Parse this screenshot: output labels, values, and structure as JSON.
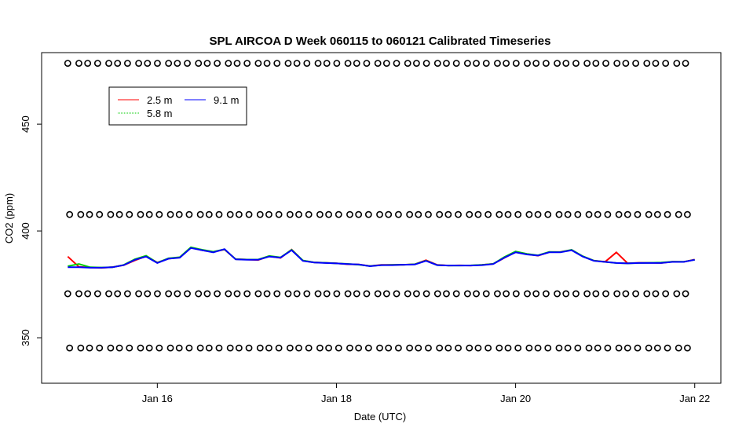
{
  "chart_data": {
    "type": "line",
    "title": "SPL AIRCOA D  Week 060115 to 060121  Calibrated Timeseries",
    "xlabel": "Date (UTC)",
    "ylabel": "CO2 (ppm)",
    "x_start": "2006-01-15T00:00",
    "x_step_hours": 3,
    "xlim": [
      "2006-01-14T17:00",
      "2006-01-22T07:00"
    ],
    "ylim": [
      328.7,
      483.5
    ],
    "x_ticks": [
      {
        "date": "2006-01-16",
        "label": "Jan 16"
      },
      {
        "date": "2006-01-18",
        "label": "Jan 18"
      },
      {
        "date": "2006-01-20",
        "label": "Jan 20"
      },
      {
        "date": "2006-01-22",
        "label": "Jan 22"
      }
    ],
    "y_ticks": [
      350,
      400,
      450
    ],
    "grid": false,
    "legend": {
      "placement": "top-left",
      "entries": [
        "2.5 m",
        "9.1 m",
        "5.8 m"
      ]
    },
    "series": [
      {
        "name": "2.5 m",
        "color": "#ff0000",
        "values": [
          388,
          383.2,
          382.9,
          382.7,
          383.1,
          384,
          386.2,
          388.2,
          385.2,
          387,
          387.6,
          392.2,
          391,
          390.2,
          391.3,
          386.8,
          386.6,
          386.4,
          388.2,
          387.4,
          391.3,
          386.1,
          385.3,
          385.1,
          384.9,
          384.4,
          384.3,
          383.6,
          384.1,
          384.1,
          384.2,
          384.4,
          386.3,
          384.1,
          383.8,
          383.9,
          383.8,
          384.1,
          384.6,
          387.4,
          390.2,
          389.2,
          388.4,
          390.1,
          390.2,
          391.1,
          388.1,
          386.1,
          385.6,
          390,
          384.9,
          385.1,
          385.1,
          385,
          385.6,
          385.5,
          386.6
        ]
      },
      {
        "name": "5.8 m",
        "color": "#00cc00",
        "values": [
          383.5,
          384.5,
          383,
          382.9,
          383,
          384.1,
          386.8,
          388.4,
          385.1,
          387.2,
          387.7,
          392.4,
          391.2,
          390.3,
          391.4,
          386.8,
          386.6,
          386.6,
          388.3,
          387.6,
          391.2,
          386.2,
          385.3,
          385.1,
          384.8,
          384.6,
          384.2,
          383.6,
          384,
          384.1,
          384.2,
          384.4,
          386.1,
          384,
          383.8,
          383.8,
          383.9,
          384.1,
          384.6,
          387.8,
          390.4,
          389.3,
          388.6,
          390.2,
          390.1,
          391.2,
          388.2,
          386.1,
          385.5,
          385,
          384.8,
          385,
          385.1,
          385.2,
          385.6,
          385.6,
          386.5
        ]
      },
      {
        "name": "9.1 m",
        "color": "#0000ff",
        "values": [
          383,
          383,
          382.8,
          382.8,
          383,
          384,
          386.5,
          388,
          385,
          387,
          387.5,
          392,
          391,
          390,
          391.5,
          386.7,
          386.5,
          386.5,
          388,
          387.5,
          391,
          386,
          385.2,
          385,
          384.8,
          384.5,
          384.3,
          383.5,
          384,
          384,
          384.2,
          384.3,
          386,
          384,
          383.8,
          383.8,
          383.8,
          384,
          384.5,
          387.5,
          390,
          389,
          388.5,
          390,
          390,
          391,
          388,
          386,
          385.5,
          385,
          384.8,
          385,
          385,
          385,
          385.5,
          385.5,
          386.5
        ]
      }
    ],
    "reference_markers": {
      "shape": "open-circle",
      "levels_ppm": [
        478.5,
        407.7,
        370.6,
        345.2
      ],
      "interval_hours": 2.67
    }
  }
}
